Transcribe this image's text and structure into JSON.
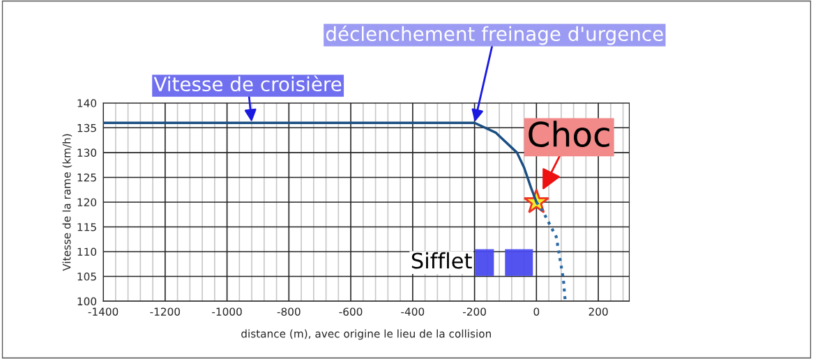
{
  "chart_data": {
    "type": "line",
    "xlabel": "distance (m), avec origine le lieu de la collision",
    "ylabel": "Vitesse de la rame (km/h)",
    "series": [
      {
        "color": "#1b4f82",
        "line_style": "solid",
        "x": [
          -1400,
          -200,
          -131,
          -63,
          -40,
          -18,
          0
        ],
        "values": [
          136,
          136,
          134,
          130,
          127,
          123,
          120
        ]
      },
      {
        "color": "#2a6aa5",
        "line_style": "dotted",
        "x": [
          0,
          22,
          64,
          87,
          93
        ],
        "values": [
          120,
          118,
          113,
          104.5,
          100
        ]
      }
    ],
    "xlim": [
      -1400,
      300
    ],
    "xticks": [
      -1400,
      -1200,
      -1000,
      -800,
      -600,
      -400,
      -200,
      0,
      200
    ],
    "ylim": [
      100,
      140
    ],
    "yticks": [
      100,
      105,
      110,
      115,
      120,
      125,
      130,
      135,
      140
    ],
    "grid": true,
    "marker": "none",
    "bands": [
      {
        "axis": "x",
        "from": -197,
        "to": -139,
        "label": "Sifflet",
        "color": "#4a4af0"
      },
      {
        "axis": "x",
        "from": -100,
        "to": -13,
        "label": null,
        "color": "#4a4af0"
      }
    ],
    "annotations": [
      {
        "text": "Vitesse de croisière",
        "x": -920,
        "y": 136
      },
      {
        "text": "déclenchement freinage d'urgence",
        "x": -200,
        "y": 136
      },
      {
        "text": "Choc",
        "x": 0,
        "y": 120
      }
    ]
  }
}
